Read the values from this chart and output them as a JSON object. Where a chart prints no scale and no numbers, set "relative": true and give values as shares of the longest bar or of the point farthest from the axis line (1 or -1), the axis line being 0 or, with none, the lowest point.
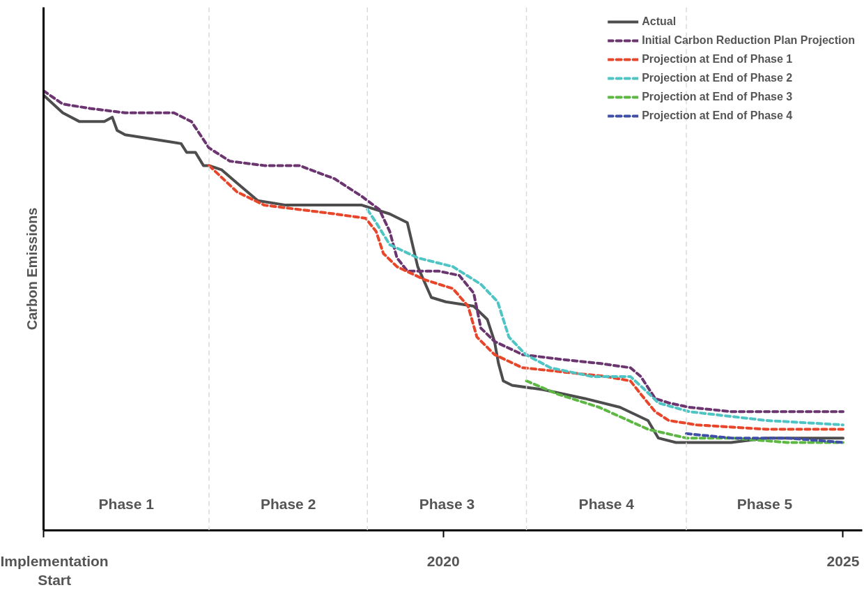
{
  "chart_data": {
    "type": "line",
    "relative": true,
    "ylabel": "Carbon Emissions",
    "xlim": [
      2015,
      2025.24
    ],
    "xticks": [
      {
        "value": 2015,
        "label": "Implementation Start"
      },
      2020,
      2025
    ],
    "tick_labels": "x",
    "grid": false,
    "legend": "top right",
    "series": [
      {
        "name": "Actual",
        "color": "#4d4d4d",
        "line_style": "solid",
        "x": [
          2015.0,
          2015.24,
          2015.45,
          2015.76,
          2015.86,
          2015.92,
          2016.02,
          2016.37,
          2016.72,
          2016.79,
          2016.9,
          2017.0,
          2017.07,
          2017.23,
          2017.42,
          2017.68,
          2018.03,
          2018.55,
          2018.98,
          2019.33,
          2019.55,
          2019.68,
          2019.85,
          2020.03,
          2020.38,
          2020.55,
          2020.64,
          2020.69,
          2020.75,
          2020.86,
          2021.25,
          2021.77,
          2022.21,
          2022.56,
          2022.69,
          2022.91,
          2023.17,
          2023.6,
          2024.04,
          2024.48,
          2025.0
        ],
        "values": [
          0.99,
          0.95,
          0.93,
          0.93,
          0.94,
          0.91,
          0.9,
          0.89,
          0.88,
          0.86,
          0.86,
          0.83,
          0.83,
          0.82,
          0.79,
          0.75,
          0.74,
          0.74,
          0.74,
          0.72,
          0.7,
          0.6,
          0.53,
          0.52,
          0.51,
          0.48,
          0.43,
          0.38,
          0.34,
          0.33,
          0.32,
          0.3,
          0.28,
          0.25,
          0.21,
          0.2,
          0.2,
          0.2,
          0.21,
          0.21,
          0.21
        ]
      },
      {
        "name": "Initial Carbon Reduction Plan Projection",
        "color": "#6b3570",
        "line_style": "dashed",
        "x": [
          2015,
          2015.24,
          2015.58,
          2016.02,
          2016.63,
          2016.85,
          2017.07,
          2017.33,
          2017.76,
          2018.2,
          2018.64,
          2018.98,
          2019.2,
          2019.33,
          2019.42,
          2019.55,
          2019.94,
          2020.2,
          2020.38,
          2020.47,
          2020.64,
          2020.99,
          2021.43,
          2021.95,
          2022.34,
          2022.47,
          2022.65,
          2022.82,
          2023.08,
          2023.61,
          2024.3,
          2025
        ],
        "values": [
          1.0,
          0.97,
          0.96,
          0.95,
          0.95,
          0.93,
          0.87,
          0.84,
          0.83,
          0.83,
          0.8,
          0.76,
          0.73,
          0.68,
          0.62,
          0.59,
          0.59,
          0.58,
          0.54,
          0.46,
          0.43,
          0.4,
          0.39,
          0.38,
          0.37,
          0.35,
          0.3,
          0.29,
          0.28,
          0.27,
          0.27,
          0.27
        ]
      },
      {
        "name": "Projection at End of Phase 1",
        "color": "#e8462a",
        "line_style": "dashed",
        "x": [
          2017.07,
          2017.42,
          2017.76,
          2018.2,
          2018.64,
          2019.03,
          2019.16,
          2019.25,
          2019.42,
          2019.77,
          2020.12,
          2020.31,
          2020.42,
          2020.64,
          2020.99,
          2021.51,
          2022.04,
          2022.34,
          2022.47,
          2022.65,
          2022.82,
          2023.17,
          2024.04,
          2025
        ],
        "values": [
          0.83,
          0.77,
          0.74,
          0.73,
          0.72,
          0.71,
          0.68,
          0.63,
          0.6,
          0.57,
          0.55,
          0.51,
          0.44,
          0.4,
          0.37,
          0.36,
          0.35,
          0.34,
          0.31,
          0.27,
          0.25,
          0.24,
          0.23,
          0.23
        ]
      },
      {
        "name": "Projection at End of Phase 2",
        "color": "#4fc4c4",
        "line_style": "dashed",
        "x": [
          2019.05,
          2019.16,
          2019.33,
          2019.68,
          2020.12,
          2020.47,
          2020.68,
          2020.82,
          2021.03,
          2021.34,
          2021.86,
          2022.34,
          2022.52,
          2022.69,
          2023.08,
          2024.04,
          2025
        ],
        "values": [
          0.73,
          0.7,
          0.65,
          0.62,
          0.6,
          0.56,
          0.52,
          0.44,
          0.4,
          0.37,
          0.35,
          0.35,
          0.32,
          0.29,
          0.27,
          0.25,
          0.24
        ]
      },
      {
        "name": "Projection at End of Phase 3",
        "color": "#5cb843",
        "line_style": "dashed",
        "x": [
          2021.04,
          2021.43,
          2021.95,
          2022.56,
          2023.04,
          2023.61,
          2024.3,
          2025
        ],
        "values": [
          0.34,
          0.31,
          0.28,
          0.23,
          0.21,
          0.21,
          0.2,
          0.2
        ]
      },
      {
        "name": "Projection at End of Phase 4",
        "color": "#3f4fa8",
        "line_style": "dashed",
        "x": [
          2023.04,
          2023.61,
          2024.3,
          2025
        ],
        "values": [
          0.22,
          0.21,
          0.21,
          0.2
        ]
      }
    ],
    "ref_lines": [
      {
        "axis": "x",
        "value": 2017.07,
        "color": "#d9d9d9",
        "line_style": "dashed"
      },
      {
        "axis": "x",
        "value": 2019.05,
        "color": "#d9d9d9",
        "line_style": "dashed"
      },
      {
        "axis": "x",
        "value": 2021.04,
        "color": "#d9d9d9",
        "line_style": "dashed"
      },
      {
        "axis": "x",
        "value": 2023.04,
        "color": "#d9d9d9",
        "line_style": "dashed"
      }
    ],
    "annotations": [
      "Phase 1",
      "Phase 2",
      "Phase 3",
      "Phase 4",
      "Phase 5"
    ]
  }
}
